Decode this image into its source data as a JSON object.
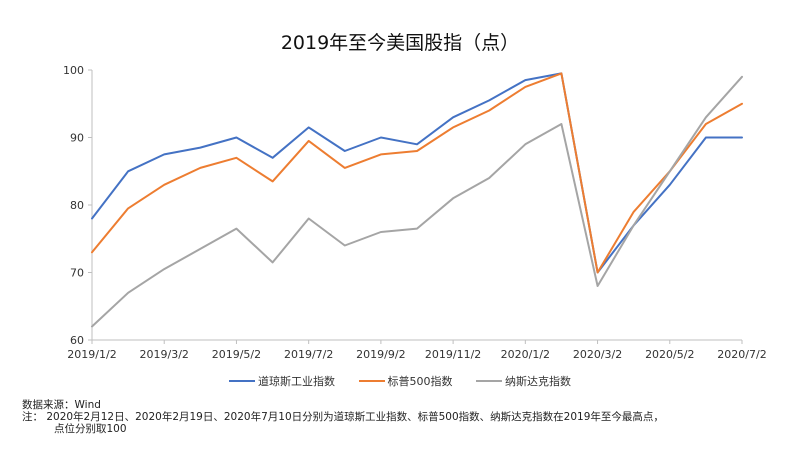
{
  "chart_data": {
    "type": "line",
    "title": "2019年至今美国股指（点）",
    "xlabel": "",
    "ylabel": "",
    "ylim": [
      60,
      100
    ],
    "yticks": [
      60,
      70,
      80,
      90,
      100
    ],
    "x_tick_labels": [
      "2019/1/2",
      "2019/3/2",
      "2019/5/2",
      "2019/7/2",
      "2019/9/2",
      "2019/11/2",
      "2020/1/2",
      "2020/3/2",
      "2020/5/2",
      "2020/7/2"
    ],
    "legend_position": "bottom",
    "grid": false,
    "x_months": [
      "2019/1",
      "2019/2",
      "2019/3",
      "2019/4",
      "2019/5",
      "2019/6",
      "2019/7",
      "2019/8",
      "2019/9",
      "2019/10",
      "2019/11",
      "2019/12",
      "2020/1",
      "2020/2",
      "2020/3",
      "2020/4",
      "2020/5",
      "2020/6",
      "2020/7"
    ],
    "series": [
      {
        "name": "道琼斯工业指数",
        "color": "#4472C4",
        "values": [
          78,
          85,
          87.5,
          88.5,
          90,
          87,
          91.5,
          88,
          90,
          89,
          93,
          95.5,
          98.5,
          99.5,
          70,
          77,
          83,
          90,
          90
        ]
      },
      {
        "name": "标普500指数",
        "color": "#ED7D31",
        "values": [
          73,
          79.5,
          83,
          85.5,
          87,
          83.5,
          89.5,
          85.5,
          87.5,
          88,
          91.5,
          94,
          97.5,
          99.5,
          70,
          79,
          85,
          92,
          95
        ]
      },
      {
        "name": "纳斯达克指数",
        "color": "#A5A5A5",
        "values": [
          62,
          67,
          70.5,
          73.5,
          76.5,
          71.5,
          78,
          74,
          76,
          76.5,
          81,
          84,
          89,
          92,
          68,
          77,
          85,
          93,
          99
        ]
      }
    ]
  },
  "notes": {
    "source": "数据来源：Wind",
    "line1": "注：  2020年2月12日、2020年2月19日、2020年7月10日分别为道琼斯工业指数、标普500指数、纳斯达克指数在2019年至今最高点，",
    "line2": "点位分别取100"
  }
}
